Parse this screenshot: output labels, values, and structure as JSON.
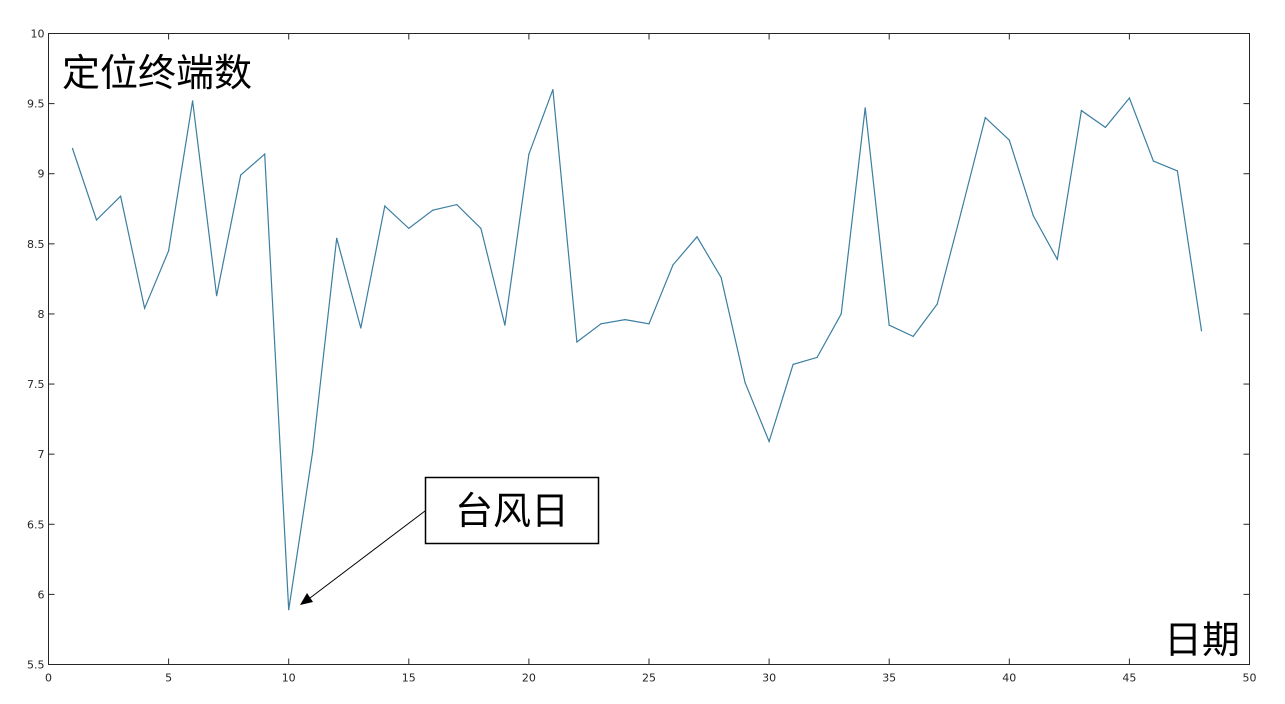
{
  "chart_data": {
    "type": "line",
    "ylabel": "定位终端数",
    "xlabel": "日期",
    "xlim": [
      0,
      50
    ],
    "ylim": [
      5.5,
      10
    ],
    "xticks": [
      0,
      5,
      10,
      15,
      20,
      25,
      30,
      35,
      40,
      45,
      50
    ],
    "yticks": [
      5.5,
      6,
      6.5,
      7,
      7.5,
      8,
      8.5,
      9,
      9.5,
      10
    ],
    "x": [
      1,
      2,
      3,
      4,
      5,
      6,
      7,
      8,
      9,
      10,
      11,
      12,
      13,
      14,
      15,
      16,
      17,
      18,
      19,
      20,
      21,
      22,
      23,
      24,
      25,
      26,
      27,
      28,
      29,
      30,
      31,
      32,
      33,
      34,
      35,
      36,
      37,
      38,
      39,
      40,
      41,
      42,
      43,
      44,
      45,
      46,
      47,
      48
    ],
    "series": [
      {
        "color": "#3b7ea1",
        "values": [
          9.18,
          8.67,
          8.84,
          8.04,
          8.45,
          9.52,
          8.13,
          8.99,
          9.14,
          5.89,
          7.02,
          8.54,
          7.9,
          8.77,
          8.61,
          8.74,
          8.78,
          8.61,
          7.92,
          9.14,
          9.6,
          7.8,
          7.93,
          7.96,
          7.93,
          8.35,
          8.55,
          8.26,
          7.51,
          7.09,
          7.64,
          7.69,
          8.0,
          9.47,
          7.92,
          7.84,
          8.07,
          8.73,
          9.4,
          9.24,
          8.7,
          8.39,
          9.45,
          9.33,
          9.54,
          9.09,
          9.02,
          7.88
        ]
      }
    ],
    "grid": false,
    "annotations": [
      {
        "text": "台风日",
        "x": 10,
        "y": 5.89
      }
    ]
  }
}
